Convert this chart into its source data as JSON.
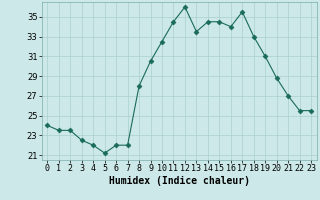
{
  "x": [
    0,
    1,
    2,
    3,
    4,
    5,
    6,
    7,
    8,
    9,
    10,
    11,
    12,
    13,
    14,
    15,
    16,
    17,
    18,
    19,
    20,
    21,
    22,
    23
  ],
  "y": [
    24.0,
    23.5,
    23.5,
    22.5,
    22.0,
    21.2,
    22.0,
    22.0,
    28.0,
    30.5,
    32.5,
    34.5,
    36.0,
    33.5,
    34.5,
    34.5,
    34.0,
    35.5,
    33.0,
    31.0,
    28.8,
    27.0,
    25.5,
    25.5
  ],
  "xlabel": "Humidex (Indice chaleur)",
  "ylim": [
    20.5,
    36.5
  ],
  "xlim": [
    -0.5,
    23.5
  ],
  "yticks": [
    21,
    23,
    25,
    27,
    29,
    31,
    33,
    35
  ],
  "xtick_labels": [
    "0",
    "1",
    "2",
    "3",
    "4",
    "5",
    "6",
    "7",
    "8",
    "9",
    "10",
    "11",
    "12",
    "13",
    "14",
    "15",
    "16",
    "17",
    "18",
    "19",
    "20",
    "21",
    "22",
    "23"
  ],
  "line_color": "#1a6b5a",
  "marker": "D",
  "marker_size": 2.5,
  "bg_color": "#cce8e8",
  "grid_color": "#aacfcf",
  "label_fontsize": 7,
  "tick_fontsize": 6
}
